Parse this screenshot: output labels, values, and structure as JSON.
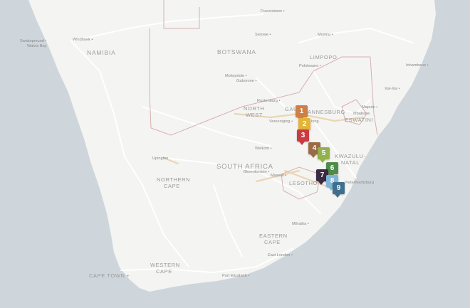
{
  "map": {
    "colors": {
      "ocean": "#cfd6db",
      "land": "#f4f4f3",
      "road": "#ffffff",
      "border": "#d7b1b1",
      "route": "#e9d6b4"
    },
    "labels": {
      "namibia": "NAMIBIA",
      "botswana": "BOTSWANA",
      "limpopo": "LIMPOPO",
      "north_west_1": "NORTH",
      "north_west_2": "WEST",
      "gauteng_part": "GAU",
      "johannesburg_part": "ANNESBURG",
      "eswatini": "ESWATINI",
      "kwazulu_1": "KWAZULU-",
      "kwazulu_2": "NATAL",
      "south_africa": "SOUTH AFRICA",
      "northern_cape_1": "NORTHERN",
      "northern_cape_2": "CAPE",
      "lesotho": "LESOTHO",
      "eastern_cape_1": "EASTERN",
      "eastern_cape_2": "CAPE",
      "western_cape_1": "WESTERN",
      "western_cape_2": "CAPE",
      "cape_town": "CAPE TOWN"
    },
    "cities": {
      "francistown": "Francistown",
      "serowe": "Serowe",
      "musina": "Musina",
      "windhoek": "Windhoek",
      "swakopmund": "Swakopmund",
      "walvis_bay": "Walvis Bay",
      "polokwane": "Polokwane",
      "inhambane": "Inhambane",
      "molepolole": "Molepolole",
      "gaborone": "Gaborone",
      "xai_xai": "Xai-Xai",
      "rustenburg": "Rustenburg",
      "vereeniging": "Vereeniging",
      "bing": "bing",
      "maputo": "Maputo",
      "mbabane": "Mbabane",
      "welkom": "Welkom",
      "upington": "Upington",
      "bloemfontein": "Bloemfontein",
      "maseru": "Maseru",
      "pietermaritzburg": "Pietermaritzburg",
      "mthatha": "Mthatha",
      "east_london": "East London",
      "port_elizabeth": "Port Elizabeth"
    },
    "markers": [
      {
        "label": "1",
        "color": "#cf7f45"
      },
      {
        "label": "2",
        "color": "#e2b43a"
      },
      {
        "label": "3",
        "color": "#cc3b42"
      },
      {
        "label": "4",
        "color": "#9a6b45"
      },
      {
        "label": "5",
        "color": "#93b24a"
      },
      {
        "label": "6",
        "color": "#4f8c4b"
      },
      {
        "label": "7",
        "color": "#3b2a44"
      },
      {
        "label": "8",
        "color": "#7fb6d8"
      },
      {
        "label": "9",
        "color": "#3f6f8e"
      }
    ]
  }
}
